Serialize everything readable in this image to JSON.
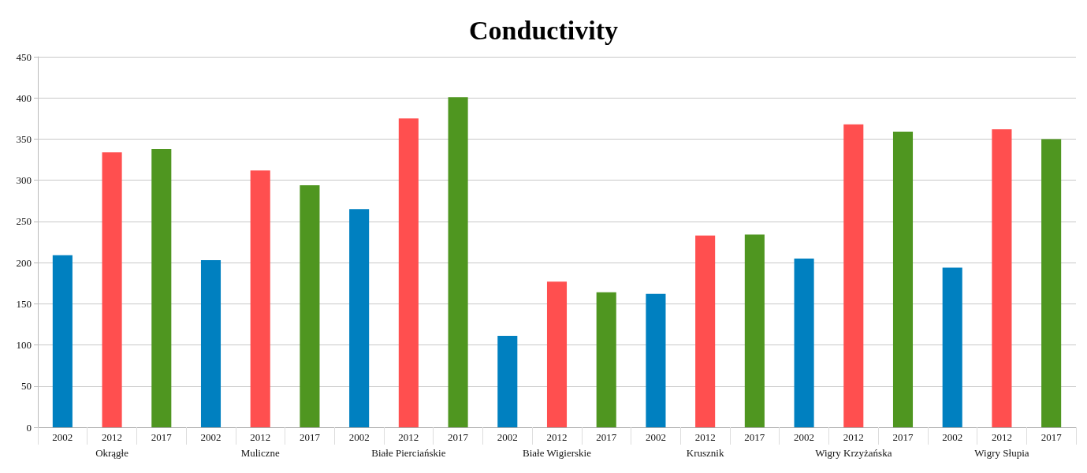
{
  "chart_data": {
    "type": "bar",
    "title": "Conductivity",
    "categories": [
      "Okrągłe",
      "Muliczne",
      "Białe Pierciańskie",
      "Białe Wigierskie",
      "Krusznik",
      "Wigry Krzyżańska",
      "Wigry Słupia"
    ],
    "series": [
      {
        "name": "2002",
        "color": "#0080c0",
        "values": [
          209,
          203,
          265,
          111,
          162,
          205,
          194
        ]
      },
      {
        "name": "2012",
        "color": "#ff4f4f",
        "values": [
          334,
          312,
          375,
          177,
          233,
          368,
          362
        ]
      },
      {
        "name": "2017",
        "color": "#4f9620",
        "values": [
          338,
          294,
          401,
          164,
          234,
          359,
          350
        ]
      }
    ],
    "ylim": [
      0,
      450
    ],
    "yticks": [
      0,
      50,
      100,
      150,
      200,
      250,
      300,
      350,
      400,
      450
    ],
    "grid": "y",
    "legend": false
  }
}
